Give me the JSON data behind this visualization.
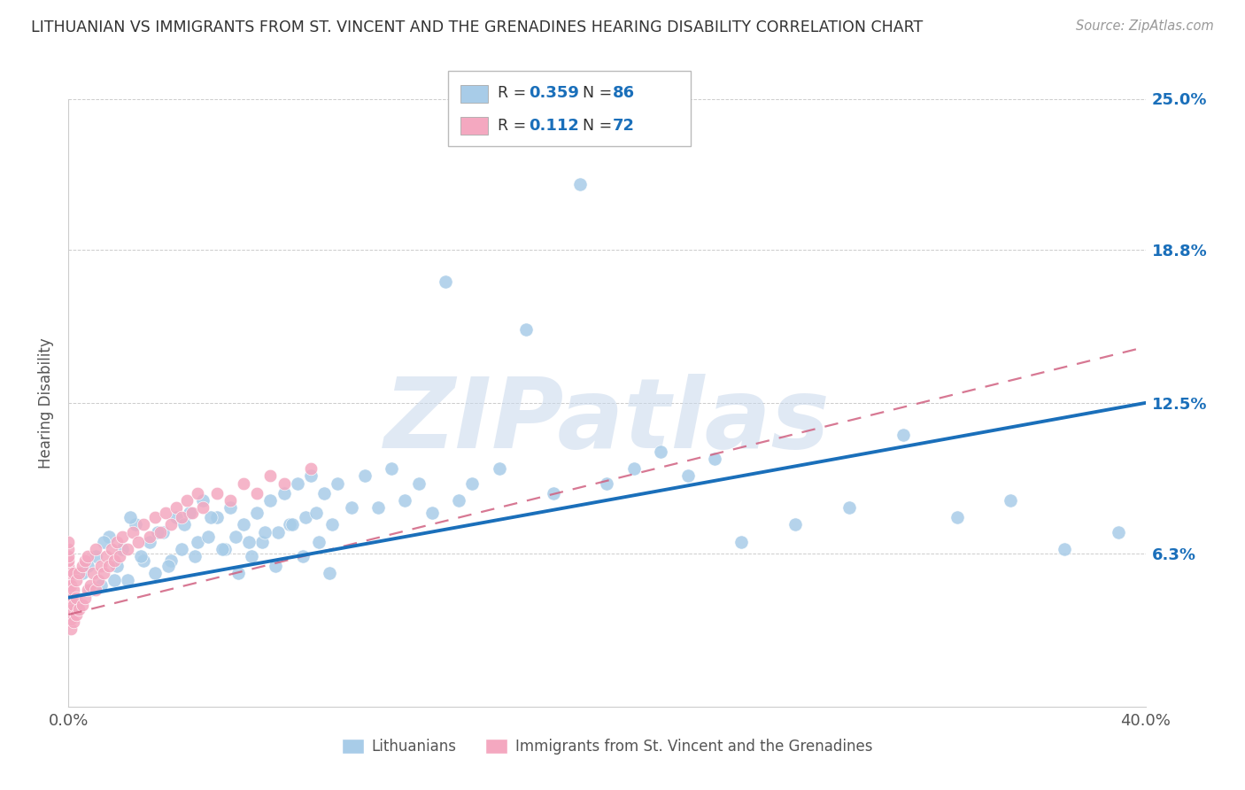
{
  "title": "LITHUANIAN VS IMMIGRANTS FROM ST. VINCENT AND THE GRENADINES HEARING DISABILITY CORRELATION CHART",
  "source": "Source: ZipAtlas.com",
  "ylabel": "Hearing Disability",
  "blue_color": "#a8cce8",
  "pink_color": "#f4a8c0",
  "blue_line_color": "#1a6fba",
  "pink_line_color": "#d06080",
  "legend_color": "#1a6fba",
  "watermark": "ZIPatlas",
  "xlim": [
    0.0,
    0.4
  ],
  "ylim": [
    0.0,
    0.25
  ],
  "y_ticks": [
    0.0,
    0.063,
    0.125,
    0.188,
    0.25
  ],
  "y_tick_labels": [
    "",
    "6.3%",
    "12.5%",
    "18.8%",
    "25.0%"
  ],
  "x_ticks": [
    0.0,
    0.1,
    0.2,
    0.3,
    0.4
  ],
  "x_tick_labels": [
    "0.0%",
    "",
    "",
    "",
    "40.0%"
  ],
  "blue_line_x0": 0.0,
  "blue_line_y0": 0.045,
  "blue_line_x1": 0.4,
  "blue_line_y1": 0.125,
  "pink_line_x0": 0.0,
  "pink_line_y0": 0.038,
  "pink_line_x1": 0.4,
  "pink_line_y1": 0.148,
  "blue_x": [
    0.005,
    0.008,
    0.01,
    0.012,
    0.015,
    0.018,
    0.02,
    0.022,
    0.025,
    0.028,
    0.03,
    0.032,
    0.035,
    0.038,
    0.04,
    0.042,
    0.045,
    0.048,
    0.05,
    0.052,
    0.055,
    0.058,
    0.06,
    0.062,
    0.065,
    0.068,
    0.07,
    0.072,
    0.075,
    0.078,
    0.08,
    0.082,
    0.085,
    0.088,
    0.09,
    0.092,
    0.095,
    0.098,
    0.1,
    0.105,
    0.11,
    0.115,
    0.12,
    0.125,
    0.13,
    0.135,
    0.14,
    0.145,
    0.15,
    0.16,
    0.17,
    0.18,
    0.19,
    0.2,
    0.21,
    0.22,
    0.23,
    0.24,
    0.25,
    0.27,
    0.29,
    0.31,
    0.33,
    0.35,
    0.37,
    0.39,
    0.003,
    0.007,
    0.013,
    0.017,
    0.023,
    0.027,
    0.033,
    0.037,
    0.043,
    0.047,
    0.053,
    0.057,
    0.063,
    0.067,
    0.073,
    0.077,
    0.083,
    0.087,
    0.093,
    0.097
  ],
  "blue_y": [
    0.055,
    0.048,
    0.062,
    0.05,
    0.07,
    0.058,
    0.065,
    0.052,
    0.075,
    0.06,
    0.068,
    0.055,
    0.072,
    0.06,
    0.078,
    0.065,
    0.08,
    0.068,
    0.085,
    0.07,
    0.078,
    0.065,
    0.082,
    0.07,
    0.075,
    0.062,
    0.08,
    0.068,
    0.085,
    0.072,
    0.088,
    0.075,
    0.092,
    0.078,
    0.095,
    0.08,
    0.088,
    0.075,
    0.092,
    0.082,
    0.095,
    0.082,
    0.098,
    0.085,
    0.092,
    0.08,
    0.175,
    0.085,
    0.092,
    0.098,
    0.155,
    0.088,
    0.215,
    0.092,
    0.098,
    0.105,
    0.095,
    0.102,
    0.068,
    0.075,
    0.082,
    0.112,
    0.078,
    0.085,
    0.065,
    0.072,
    0.042,
    0.058,
    0.068,
    0.052,
    0.078,
    0.062,
    0.072,
    0.058,
    0.075,
    0.062,
    0.078,
    0.065,
    0.055,
    0.068,
    0.072,
    0.058,
    0.075,
    0.062,
    0.068,
    0.055
  ],
  "pink_x": [
    0.0,
    0.0,
    0.0,
    0.0,
    0.0,
    0.0,
    0.0,
    0.0,
    0.0,
    0.0,
    0.0,
    0.0,
    0.0,
    0.0,
    0.0,
    0.001,
    0.001,
    0.001,
    0.001,
    0.001,
    0.001,
    0.002,
    0.002,
    0.002,
    0.002,
    0.003,
    0.003,
    0.003,
    0.004,
    0.004,
    0.005,
    0.005,
    0.006,
    0.006,
    0.007,
    0.007,
    0.008,
    0.009,
    0.01,
    0.01,
    0.011,
    0.012,
    0.013,
    0.014,
    0.015,
    0.016,
    0.017,
    0.018,
    0.019,
    0.02,
    0.022,
    0.024,
    0.026,
    0.028,
    0.03,
    0.032,
    0.034,
    0.036,
    0.038,
    0.04,
    0.042,
    0.044,
    0.046,
    0.048,
    0.05,
    0.055,
    0.06,
    0.065,
    0.07,
    0.075,
    0.08,
    0.09
  ],
  "pink_y": [
    0.035,
    0.038,
    0.04,
    0.042,
    0.044,
    0.046,
    0.048,
    0.05,
    0.052,
    0.055,
    0.058,
    0.06,
    0.062,
    0.065,
    0.068,
    0.032,
    0.036,
    0.04,
    0.045,
    0.05,
    0.055,
    0.035,
    0.042,
    0.048,
    0.055,
    0.038,
    0.045,
    0.052,
    0.04,
    0.055,
    0.042,
    0.058,
    0.045,
    0.06,
    0.048,
    0.062,
    0.05,
    0.055,
    0.048,
    0.065,
    0.052,
    0.058,
    0.055,
    0.062,
    0.058,
    0.065,
    0.06,
    0.068,
    0.062,
    0.07,
    0.065,
    0.072,
    0.068,
    0.075,
    0.07,
    0.078,
    0.072,
    0.08,
    0.075,
    0.082,
    0.078,
    0.085,
    0.08,
    0.088,
    0.082,
    0.088,
    0.085,
    0.092,
    0.088,
    0.095,
    0.092,
    0.098
  ]
}
